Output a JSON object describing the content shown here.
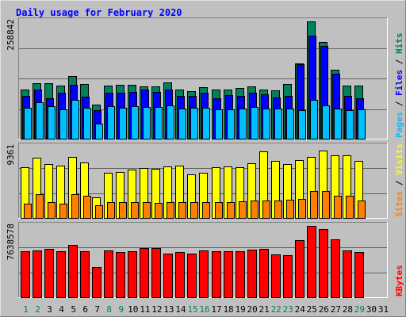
{
  "chart_data": {
    "title": "Daily usage for February 2020",
    "x": [
      "1",
      "2",
      "3",
      "4",
      "5",
      "6",
      "7",
      "8",
      "9",
      "10",
      "11",
      "12",
      "13",
      "14",
      "15",
      "16",
      "17",
      "18",
      "19",
      "20",
      "21",
      "22",
      "23",
      "24",
      "25",
      "26",
      "27",
      "28",
      "29",
      "30",
      "31"
    ],
    "weekend_days": [
      1,
      2,
      8,
      9,
      15,
      16,
      22,
      23,
      29
    ],
    "panels": [
      {
        "type": "bar",
        "name": "hits-files-pages",
        "ymax_label": "258842",
        "ylim": [
          0,
          258842
        ],
        "legend": [
          "Pages",
          "Files",
          "Hits"
        ],
        "series": [
          {
            "name": "Hits",
            "color": "#00805c",
            "values": [
              109000,
              122000,
              122000,
              118000,
              139000,
              120000,
              75000,
              117000,
              119000,
              119000,
              116000,
              116000,
              125000,
              108000,
              105000,
              113000,
              109000,
              109000,
              112000,
              115000,
              108000,
              107000,
              120000,
              166000,
              258000,
              214000,
              153000,
              117000,
              117000,
              0,
              0
            ]
          },
          {
            "name": "Files",
            "color": "#0000ff",
            "values": [
              94000,
              108000,
              90000,
              102000,
              119000,
              93000,
              63000,
              101000,
              101000,
              103000,
              108000,
              103000,
              108000,
              94000,
              94000,
              102000,
              90000,
              96000,
              94000,
              101000,
              98000,
              91000,
              94000,
              165000,
              227000,
              205000,
              143000,
              94000,
              89000,
              0,
              0
            ]
          },
          {
            "name": "Pages",
            "color": "#00c0ff",
            "values": [
              68000,
              81000,
              72000,
              64000,
              86000,
              68000,
              34000,
              71000,
              69000,
              71000,
              70000,
              70000,
              73000,
              66000,
              68000,
              68000,
              64000,
              65000,
              66000,
              70000,
              67000,
              66000,
              67000,
              63000,
              85000,
              73000,
              66000,
              63000,
              65000,
              0,
              0
            ]
          }
        ]
      },
      {
        "type": "bar",
        "name": "visits-sites",
        "ymax_label": "9361",
        "ylim": [
          0,
          9361
        ],
        "legend": [
          "Sites",
          "Visits"
        ],
        "series": [
          {
            "name": "Visits",
            "color": "#ffff00",
            "values": [
              6700,
              7900,
              7100,
              6900,
              8000,
              7300,
              2700,
              5900,
              6000,
              6300,
              6600,
              6400,
              6800,
              6900,
              5700,
              5900,
              6700,
              6800,
              6700,
              7200,
              8700,
              7500,
              7100,
              7600,
              8000,
              8800,
              8200,
              8200,
              7500,
              0,
              0
            ]
          },
          {
            "name": "Sites",
            "color": "#ff8000",
            "values": [
              1900,
              3100,
              2100,
              1900,
              3100,
              2900,
              1700,
              2100,
              2100,
              2100,
              2100,
              2000,
              2100,
              2100,
              2100,
              2100,
              2100,
              2100,
              2200,
              2300,
              2300,
              2300,
              2400,
              2500,
              3500,
              3500,
              2900,
              2900,
              2300,
              0,
              0
            ]
          }
        ]
      },
      {
        "type": "bar",
        "name": "kbytes",
        "ymax_label": "7638578",
        "ylim": [
          0,
          7638578
        ],
        "legend": [
          "KBytes"
        ],
        "series": [
          {
            "name": "KBytes",
            "color": "#ff0000",
            "values": [
              4900000,
              5000000,
              5200000,
              4900000,
              5600000,
              4900000,
              3200000,
              5000000,
              4800000,
              4900000,
              5300000,
              5300000,
              4700000,
              4800000,
              4700000,
              5000000,
              4900000,
              4900000,
              4900000,
              5100000,
              5200000,
              4600000,
              4500000,
              6100000,
              7600000,
              7300000,
              6200000,
              5000000,
              4800000,
              0,
              0
            ]
          }
        ]
      }
    ],
    "colors": {
      "background": "#c0c0c0",
      "title": "#0000ff",
      "gridline": "#606060",
      "weekday_label": "#000000",
      "weekend_label": "#00805c",
      "legend_separator": "#000000"
    }
  }
}
